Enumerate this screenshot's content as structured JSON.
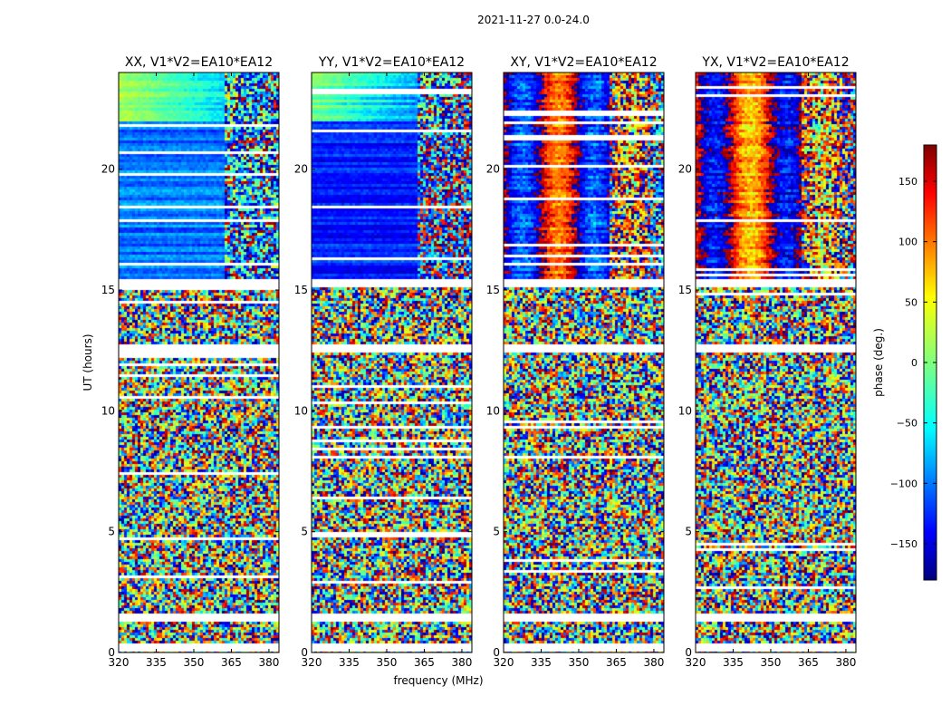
{
  "chart_data": {
    "type": "heatmap",
    "title": "2021-11-27 0.0-24.0",
    "xlabel": "frequency (MHz)",
    "ylabel": "UT (hours)",
    "xlim": [
      320,
      384
    ],
    "ylim": [
      0,
      24
    ],
    "xticks": [
      320,
      335,
      350,
      365,
      380
    ],
    "yticks": [
      0,
      5,
      10,
      15,
      20
    ],
    "colorbar": {
      "label": "phase (deg.)",
      "range": [
        -180,
        180
      ],
      "ticks": [
        -150,
        -100,
        -50,
        0,
        50,
        100,
        150
      ],
      "tick_labels": [
        "−150",
        "−100",
        "−50",
        "0",
        "50",
        "100",
        "150"
      ],
      "colormap": "jet"
    },
    "flagged_bands_ut": [
      [
        0.0,
        0.4
      ],
      [
        1.3,
        1.6
      ],
      [
        12.4,
        12.7
      ],
      [
        15.1,
        15.5
      ]
    ],
    "panels": [
      {
        "name": "xx",
        "title": "XX, V1*V2=EA10*EA12",
        "coherent_ut": [
          15.5,
          24.0
        ],
        "mean_phase_deg": -95,
        "coherent_pattern": "uniform"
      },
      {
        "name": "yy",
        "title": "YY, V1*V2=EA10*EA12",
        "coherent_ut": [
          15.5,
          24.0
        ],
        "mean_phase_deg": -125,
        "coherent_pattern": "uniform"
      },
      {
        "name": "xy",
        "title": "XY, V1*V2=EA10*EA12",
        "coherent_ut": [
          15.5,
          24.0
        ],
        "mean_phase_deg": 180,
        "coherent_pattern": "striped"
      },
      {
        "name": "yx",
        "title": "YX, V1*V2=EA10*EA12",
        "coherent_ut": [
          15.5,
          24.0
        ],
        "mean_phase_deg": 150,
        "coherent_pattern": "striped"
      }
    ]
  }
}
